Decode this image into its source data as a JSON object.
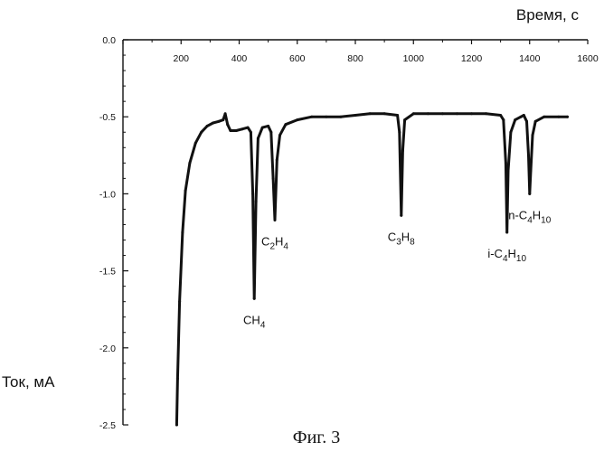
{
  "chart_data": {
    "type": "line",
    "xlabel": "Время, с",
    "ylabel": "Ток, мА",
    "xlim": [
      0,
      1600
    ],
    "ylim": [
      -2.5,
      0.0
    ],
    "x_ticks": [
      0,
      200,
      400,
      600,
      800,
      1000,
      1200,
      1400,
      1600
    ],
    "y_ticks": [
      0.0,
      -0.5,
      -1.0,
      -1.5,
      -2.0,
      -2.5
    ],
    "x_tick_labels": [
      "0",
      "200",
      "400",
      "600",
      "800",
      "1000",
      "1200",
      "1400",
      "1600"
    ],
    "y_tick_labels": [
      "0.0",
      "-0.5",
      "-1.0",
      "-1.5",
      "-2.0",
      "-2.5"
    ],
    "series": [
      {
        "x": [
          185,
          188,
          195,
          205,
          215,
          230,
          250,
          270,
          290,
          310,
          330,
          345,
          352,
          360,
          370,
          390,
          410,
          430,
          440,
          447,
          452,
          458,
          465,
          480,
          500,
          510,
          517,
          523,
          530,
          540,
          560,
          600,
          650,
          700,
          750,
          800,
          850,
          900,
          945,
          952,
          958,
          963,
          970,
          1000,
          1050,
          1100,
          1150,
          1200,
          1250,
          1300,
          1310,
          1318,
          1322,
          1326,
          1335,
          1350,
          1370,
          1380,
          1390,
          1396,
          1400,
          1404,
          1410,
          1420,
          1450,
          1500,
          1530
        ],
        "y": [
          -2.5,
          -2.2,
          -1.7,
          -1.25,
          -0.98,
          -0.8,
          -0.67,
          -0.6,
          -0.56,
          -0.54,
          -0.53,
          -0.52,
          -0.48,
          -0.55,
          -0.59,
          -0.59,
          -0.58,
          -0.57,
          -0.6,
          -1.0,
          -1.68,
          -1.05,
          -0.64,
          -0.57,
          -0.56,
          -0.6,
          -0.9,
          -1.17,
          -0.78,
          -0.62,
          -0.55,
          -0.52,
          -0.5,
          -0.5,
          -0.5,
          -0.49,
          -0.48,
          -0.48,
          -0.49,
          -0.6,
          -1.14,
          -0.72,
          -0.52,
          -0.48,
          -0.48,
          -0.48,
          -0.48,
          -0.48,
          -0.48,
          -0.49,
          -0.52,
          -0.8,
          -1.25,
          -0.85,
          -0.6,
          -0.52,
          -0.5,
          -0.49,
          -0.53,
          -0.75,
          -1.0,
          -0.85,
          -0.62,
          -0.53,
          -0.5,
          -0.5,
          -0.5
        ]
      }
    ],
    "annotations": [
      {
        "text": "CH",
        "sub": "4",
        "text2": "",
        "sub2": "",
        "x": 452,
        "y": -1.68
      },
      {
        "text": "C",
        "sub": "2",
        "text2": "H",
        "sub2": "4",
        "x": 523,
        "y": -1.17
      },
      {
        "text": "C",
        "sub": "3",
        "text2": "H",
        "sub2": "8",
        "x": 958,
        "y": -1.14
      },
      {
        "text": "i-C",
        "sub": "4",
        "text2": "H",
        "sub2": "10",
        "x": 1322,
        "y": -1.25
      },
      {
        "text": "n-C",
        "sub": "4",
        "text2": "H",
        "sub2": "10",
        "x": 1400,
        "y": -1.0
      }
    ],
    "grid": false,
    "legend": "none"
  },
  "caption": "Фиг. 3"
}
